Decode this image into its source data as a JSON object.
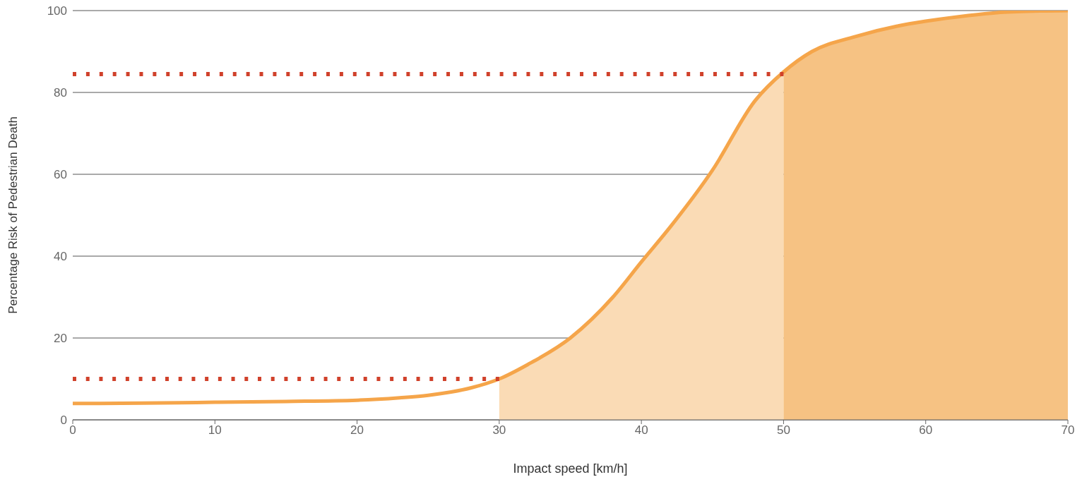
{
  "chart_data": {
    "type": "line",
    "xlabel": "Impact speed [km/h]",
    "ylabel": "Percentage Risk of Pedestrian Death",
    "xlim": [
      0,
      70
    ],
    "xticks": [
      0,
      10,
      20,
      30,
      40,
      50,
      60,
      70
    ],
    "ylim": [
      0,
      100
    ],
    "yticks": [
      0,
      20,
      40,
      60,
      80,
      100
    ],
    "grid": "y",
    "marker": "none",
    "series": [
      {
        "type": "area",
        "color": "#fadbb5",
        "x": [
          30,
          32,
          35,
          38,
          40,
          42,
          45,
          48,
          50
        ],
        "values": [
          10,
          13.5,
          20,
          30,
          38.6,
          47,
          61,
          78,
          85
        ]
      },
      {
        "type": "area",
        "color": "#f6c283",
        "x": [
          50,
          52,
          55,
          58,
          60,
          63,
          65,
          68,
          70
        ],
        "values": [
          85,
          90,
          93.6,
          96.2,
          97.4,
          98.8,
          99.5,
          99.9,
          100
        ]
      },
      {
        "type": "line",
        "color": "#f5a54a",
        "line_style": "solid",
        "x": [
          0,
          5,
          10,
          15,
          20,
          23,
          25,
          28,
          30,
          32,
          35,
          38,
          40,
          42,
          45,
          48,
          50,
          52,
          55,
          58,
          60,
          63,
          65,
          68,
          70
        ],
        "values": [
          4,
          4.1,
          4.3,
          4.5,
          4.8,
          5.4,
          6,
          7.8,
          10,
          13.5,
          20,
          30,
          38.6,
          47,
          61,
          78,
          85,
          90,
          93.6,
          96.2,
          97.4,
          98.8,
          99.5,
          99.9,
          100
        ]
      },
      {
        "type": "line",
        "color": "#d0412b",
        "line_style": "dotted",
        "x": [
          0,
          30
        ],
        "values": [
          10,
          10
        ]
      },
      {
        "type": "line",
        "color": "#d0412b",
        "line_style": "dotted",
        "x": [
          0,
          50
        ],
        "values": [
          84.5,
          84.5
        ]
      }
    ]
  }
}
